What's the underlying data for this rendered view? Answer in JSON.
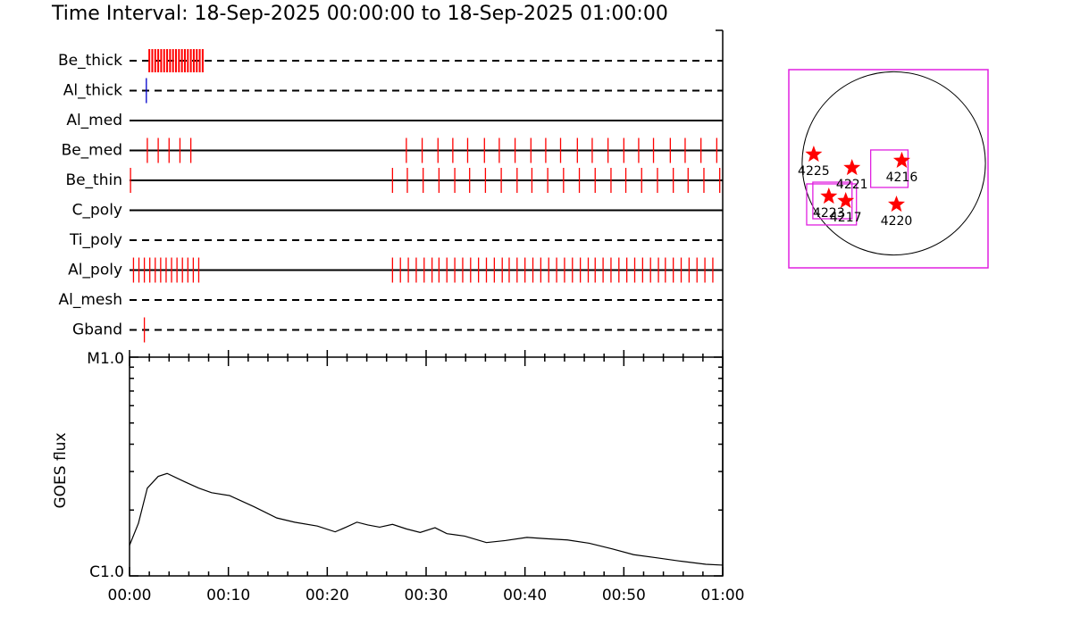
{
  "chart_data": {
    "type": "timeline",
    "title": "Time Interval: 18-Sep-2025 00:00:00 to 18-Sep-2025 01:00:00",
    "xlim": [
      0,
      60
    ],
    "xticks": [
      {
        "value": 0,
        "label": "00:00"
      },
      {
        "value": 10,
        "label": "00:10"
      },
      {
        "value": 20,
        "label": "00:20"
      },
      {
        "value": 30,
        "label": "00:30"
      },
      {
        "value": 40,
        "label": "00:40"
      },
      {
        "value": 50,
        "label": "00:50"
      },
      {
        "value": 60,
        "label": "01:00"
      }
    ],
    "xminorticks": [
      2,
      4,
      6,
      8,
      12,
      14,
      16,
      18,
      22,
      24,
      26,
      28,
      32,
      34,
      36,
      38,
      42,
      44,
      46,
      48,
      52,
      54,
      56,
      58
    ],
    "filters": [
      {
        "name": "Be_thick",
        "line": "dashed",
        "color": "#ff0000",
        "times": [
          2.0,
          2.3,
          2.6,
          2.9,
          3.2,
          3.5,
          3.8,
          4.1,
          4.4,
          4.7,
          5.0,
          5.3,
          5.6,
          5.9,
          6.2,
          6.5,
          6.8,
          7.1,
          7.4
        ]
      },
      {
        "name": "Al_thick",
        "line": "dashed",
        "color": "#0000cc",
        "times": [
          1.7
        ]
      },
      {
        "name": "Al_med",
        "line": "solid",
        "color": "#ff0000",
        "times": []
      },
      {
        "name": "Be_med",
        "line": "solid",
        "color": "#ff0000",
        "times": [
          1.8,
          2.9,
          4.0,
          5.1,
          6.2,
          28.0,
          29.6,
          31.2,
          32.7,
          34.2,
          35.9,
          37.4,
          39.0,
          40.6,
          42.1,
          43.6,
          45.3,
          46.8,
          48.4,
          50.0,
          51.5,
          53.0,
          54.7,
          56.2,
          57.8,
          59.4
        ]
      },
      {
        "name": "Be_thin",
        "line": "solid",
        "color": "#ff0000",
        "times": [
          0.1,
          26.6,
          28.1,
          29.7,
          31.3,
          32.9,
          34.4,
          36.0,
          37.6,
          39.2,
          40.7,
          42.3,
          43.9,
          45.5,
          47.1,
          48.7,
          50.2,
          51.8,
          53.4,
          55.0,
          56.5,
          58.1,
          59.7
        ]
      },
      {
        "name": "C_poly",
        "line": "solid",
        "color": "#ff0000",
        "times": []
      },
      {
        "name": "Ti_poly",
        "line": "dashed",
        "color": "#ff0000",
        "times": []
      },
      {
        "name": "Al_poly",
        "line": "solid",
        "color": "#ff0000",
        "times": [
          0.4,
          0.95,
          1.5,
          2.05,
          2.6,
          3.15,
          3.7,
          4.25,
          4.8,
          5.35,
          5.9,
          6.45,
          7.0,
          26.6,
          27.4,
          28.2,
          29.0,
          29.8,
          30.6,
          31.3,
          32.1,
          32.9,
          33.7,
          34.5,
          35.3,
          36.1,
          36.9,
          37.7,
          38.4,
          39.2,
          40.0,
          40.8,
          41.6,
          42.4,
          43.2,
          44.0,
          44.8,
          45.6,
          46.4,
          47.1,
          47.9,
          48.7,
          49.5,
          50.3,
          51.1,
          51.9,
          52.7,
          53.5,
          54.2,
          55.0,
          55.8,
          56.6,
          57.4,
          58.2,
          59.0
        ]
      },
      {
        "name": "Al_mesh",
        "line": "dashed",
        "color": "#ff0000",
        "times": []
      },
      {
        "name": "Gband",
        "line": "dashed",
        "color": "#ff0000",
        "times": [
          1.5
        ]
      }
    ],
    "goes": {
      "ylabel": "GOES flux",
      "log": true,
      "ylim": [
        1e-06,
        1e-05
      ],
      "yticks": [
        {
          "value": 1e-06,
          "label": "C1.0"
        },
        {
          "value": 1e-05,
          "label": "M1.0"
        }
      ],
      "yminorticks": [
        2e-06,
        3e-06,
        4e-06,
        5e-06,
        6e-06,
        7e-06,
        8e-06,
        9e-06
      ],
      "color": "#000000",
      "x": [
        0,
        0.9,
        1.8,
        2.9,
        3.8,
        5.6,
        7.0,
        8.3,
        10.1,
        12.6,
        14.9,
        16.7,
        19.0,
        20.8,
        21.9,
        23.0,
        24.1,
        25.3,
        26.6,
        28.0,
        29.4,
        30.9,
        32.1,
        33.9,
        36.1,
        38.0,
        40.2,
        42.0,
        44.3,
        46.5,
        48.8,
        51.0,
        53.3,
        55.6,
        58.3,
        60
      ],
      "values": [
        1.38e-06,
        1.74e-06,
        2.52e-06,
        2.85e-06,
        2.94e-06,
        2.69e-06,
        2.52e-06,
        2.4e-06,
        2.33e-06,
        2.07e-06,
        1.84e-06,
        1.76e-06,
        1.69e-06,
        1.59e-06,
        1.67e-06,
        1.76e-06,
        1.71e-06,
        1.67e-06,
        1.72e-06,
        1.64e-06,
        1.58e-06,
        1.66e-06,
        1.56e-06,
        1.52e-06,
        1.42e-06,
        1.45e-06,
        1.5e-06,
        1.48e-06,
        1.46e-06,
        1.41e-06,
        1.33e-06,
        1.25e-06,
        1.21e-06,
        1.17e-06,
        1.13e-06,
        1.12e-06
      ]
    },
    "map": {
      "xlim": [
        -1088,
        977
      ],
      "ylim": [
        -1079,
        968
      ],
      "disk_radius": 950,
      "frame_color": "#e020e0",
      "star_color": "#ff0000",
      "regions": [
        {
          "label": "4225",
          "x": -830,
          "y": 92
        },
        {
          "label": "4221",
          "x": -433,
          "y": -46
        },
        {
          "label": "4216",
          "x": 83,
          "y": 28
        },
        {
          "label": "4223",
          "x": -673,
          "y": -341
        },
        {
          "label": "4217",
          "x": -498,
          "y": -387
        },
        {
          "label": "4220",
          "x": 28,
          "y": -424
        }
      ],
      "fovs": [
        {
          "x": -46,
          "y": -55,
          "width": 387,
          "height": 387
        },
        {
          "x": -636,
          "y": -383,
          "width": 406,
          "height": 378
        },
        {
          "x": -645,
          "y": -424,
          "width": 516,
          "height": 424
        }
      ]
    }
  }
}
